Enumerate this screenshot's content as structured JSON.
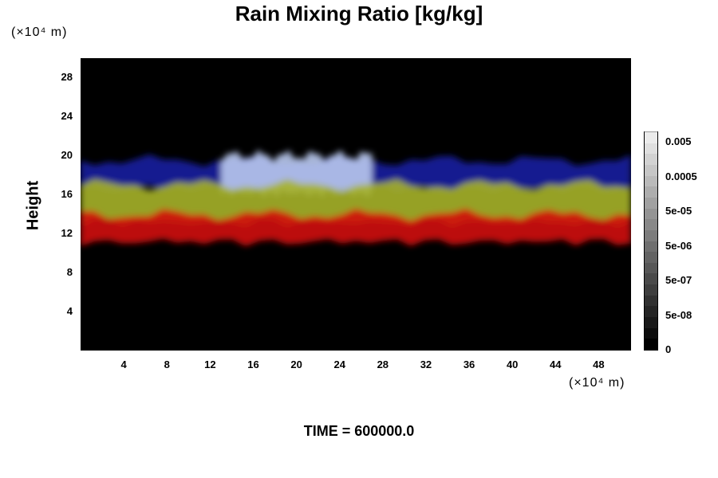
{
  "chart_data": {
    "type": "heatmap",
    "title": "Rain Mixing Ratio [kg/kg]",
    "ylabel": "Height",
    "xlabel": "",
    "x_unit": "(×10⁴ m)",
    "y_unit": "(×10⁴ m)",
    "x_ticks": [
      4,
      8,
      12,
      16,
      20,
      24,
      28,
      32,
      36,
      40,
      44,
      48
    ],
    "y_ticks": [
      4,
      8,
      12,
      16,
      20,
      24,
      28
    ],
    "xlim": [
      0,
      51
    ],
    "ylim": [
      0,
      30
    ],
    "grid": false,
    "colorbar": {
      "labels": [
        "0.005",
        "0.0005",
        "5e-05",
        "5e-06",
        "5e-07",
        "5e-08",
        "0"
      ],
      "levels": 20
    },
    "layers": [
      {
        "color": "#1a1fa0",
        "y_range": [
          17,
          19.5
        ],
        "x_range": [
          0,
          51
        ]
      },
      {
        "color": "#b9c9ee",
        "y_range": [
          16.5,
          20
        ],
        "x_range": [
          13,
          27
        ]
      },
      {
        "color": "#a6b22a",
        "y_range": [
          13.5,
          17
        ],
        "x_range": [
          0,
          51
        ]
      },
      {
        "color": "#d01010",
        "y_range": [
          11.5,
          14
        ],
        "x_range": [
          0,
          51
        ]
      }
    ],
    "annotation": "TIME = 600000.0"
  }
}
